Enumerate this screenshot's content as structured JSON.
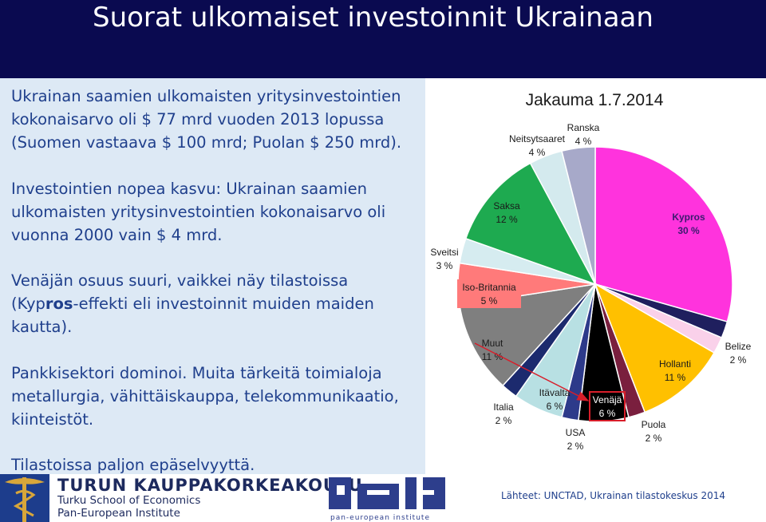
{
  "slide": {
    "title": "Suorat ulkomaiset investoinnit Ukrainaan"
  },
  "paragraphs": {
    "p1": "Ukrainan saamien ulkomaisten yritysinvestointien kokonaisarvo oli $ 77 mrd vuoden 2013 lopussa (Suomen vastaava $ 100 mrd; Puolan $ 250 mrd).",
    "p2": "Investointien nopea kasvu: Ukrainan saamien ulkomaisten yritysinvestointien kokonaisarvo oli vuonna 2000 vain $ 4 mrd.",
    "p3_a": "Venäjän osuus suuri, vaikkei näy tilastoissa (Kyp",
    "p3_b": "ros",
    "p3_c": "-effekti eli investoinnit muiden maiden kautta).",
    "p4": "Pankkisektori dominoi. Muita tärkeitä toimialoja metallurgia, vähittäiskauppa, telekommunikaatio, kiinteistöt.",
    "p5": "Tilastoissa paljon epäselvyyttä."
  },
  "footer": {
    "tse_name": "TURUN KAUPPAKORKEAKOULU",
    "tse_en": "Turku School of Economics",
    "tse_pei": "Pan-European Institute",
    "pei_caption": "pan-european institute",
    "sources": "Lähteet: UNCTAD, Ukrainan tilastokeskus 2014"
  },
  "colors": {
    "title_bg": "#0a0a50",
    "left_panel_bg": "#dde9f5",
    "text_blue": "#1f3f8c",
    "arrow_red": "#d81e2a"
  },
  "chart_data": {
    "type": "pie",
    "title": "Jakauma 1.7.2014",
    "slices": [
      {
        "label": "Kypros",
        "pct": "30 %",
        "value": 30,
        "color": "#ff33dd"
      },
      {
        "label": "",
        "pct": "",
        "value": 2,
        "color": "#1f1f5e"
      },
      {
        "label": "Belize",
        "pct": "2 %",
        "value": 2,
        "color": "#fad1ea"
      },
      {
        "label": "Hollanti",
        "pct": "11 %",
        "value": 11,
        "color": "#ffc000"
      },
      {
        "label": "Puola",
        "pct": "2 %",
        "value": 2,
        "color": "#7a1f3e"
      },
      {
        "label": "Venäjä",
        "pct": "6 %",
        "value": 6,
        "color": "#000000"
      },
      {
        "label": "USA",
        "pct": "2 %",
        "value": 2,
        "color": "#2d3a8a"
      },
      {
        "label": "Itävalta",
        "pct": "6 %",
        "value": 6,
        "color": "#b8e0e3"
      },
      {
        "label": "Italia",
        "pct": "2 %",
        "value": 2,
        "color": "#1c2a6e"
      },
      {
        "label": "Muut",
        "pct": "11 %",
        "value": 11,
        "color": "#7f7f7f"
      },
      {
        "label": "Iso-Britannia",
        "pct": "5 %",
        "value": 5,
        "color": "#ff7a7a"
      },
      {
        "label": "Sveitsi",
        "pct": "3 %",
        "value": 3,
        "color": "#d6ecf0"
      },
      {
        "label": "Saksa",
        "pct": "12 %",
        "value": 12,
        "color": "#1eaa50"
      },
      {
        "label": "Neitsytsaaret",
        "pct": "4 %",
        "value": 4,
        "color": "#d4eaee"
      },
      {
        "label": "Ranska",
        "pct": "4 %",
        "value": 4,
        "color": "#a7a9c9"
      }
    ]
  }
}
